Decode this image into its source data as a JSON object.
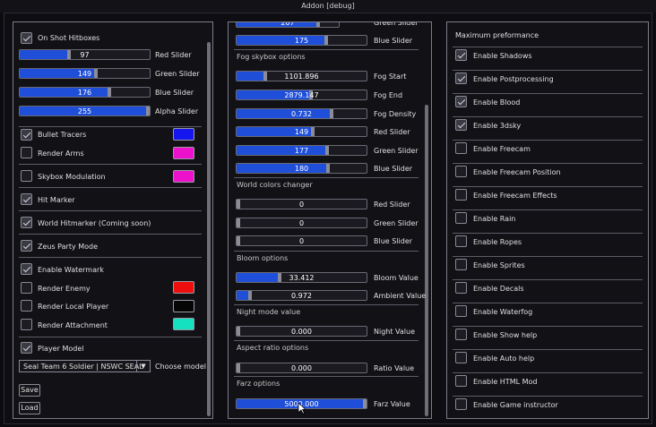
{
  "window": {
    "title": "Addon [debug]"
  },
  "left": {
    "on_shot_hitboxes": "On Shot Hitboxes",
    "sliders": [
      {
        "label": "Red Slider",
        "value": "97",
        "fraction": 0.38
      },
      {
        "label": "Green Slider",
        "value": "149",
        "fraction": 0.584
      },
      {
        "label": "Blue Slider",
        "value": "176",
        "fraction": 0.69
      },
      {
        "label": "Alpha Slider",
        "value": "255",
        "fraction": 1.0
      }
    ],
    "bullet_tracers": "Bullet Tracers",
    "render_arms": "Render Arms",
    "skybox_modulation": "Skybox Modulation",
    "hit_marker": "Hit Marker",
    "world_hitmarker": "World Hitmarker (Coming soon)",
    "zeus_party_mode": "Zeus Party Mode",
    "enable_watermark": "Enable Watermark",
    "render_enemy": "Render Enemy",
    "render_local_player": "Render Local Player",
    "render_attachment": "Render Attachment",
    "player_model": "Player Model",
    "model_select": "Seal Team 6 Soldier | NSWC SEAL",
    "choose_model": "Choose model",
    "save": "Save",
    "load": "Load",
    "colors": {
      "bullet_tracers": "#1515ee",
      "render_arms": "#ee11cc",
      "skybox_modulation": "#ee11cc",
      "render_enemy": "#ee0e0e",
      "render_local_player": "#050505",
      "render_attachment": "#15e0c0"
    }
  },
  "middle": {
    "top_partial": {
      "label": "Green Slider",
      "value": "207",
      "fraction": 0.8
    },
    "top_blue": {
      "label": "Blue Slider",
      "value": "175",
      "fraction": 0.69
    },
    "fog_header": "Fog skybox options",
    "fog": [
      {
        "label": "Fog Start",
        "value": "1101.896",
        "fraction": 0.22
      },
      {
        "label": "Fog End",
        "value": "2879.147",
        "fraction": 0.57
      },
      {
        "label": "Fog Density",
        "value": "0.732",
        "fraction": 0.73
      },
      {
        "label": "Red Slider",
        "value": "149",
        "fraction": 0.584
      },
      {
        "label": "Green Slider",
        "value": "177",
        "fraction": 0.694
      },
      {
        "label": "Blue Slider",
        "value": "180",
        "fraction": 0.706
      }
    ],
    "world_header": "World colors changer",
    "world": [
      {
        "label": "Red Slider",
        "value": "0",
        "fraction": 0
      },
      {
        "label": "Green Slider",
        "value": "0",
        "fraction": 0
      },
      {
        "label": "Blue Slider",
        "value": "0",
        "fraction": 0
      }
    ],
    "bloom_header": "Bloom options",
    "bloom": [
      {
        "label": "Bloom Value",
        "value": "33.412",
        "fraction": 0.33
      },
      {
        "label": "Ambient Value",
        "value": "0.972",
        "fraction": 0.1
      }
    ],
    "night_header": "Night mode value",
    "night": {
      "label": "Night Value",
      "value": "0.000",
      "fraction": 0
    },
    "aspect_header": "Aspect ratio options",
    "aspect": {
      "label": "Ratio Value",
      "value": "0.000",
      "fraction": 0
    },
    "farz_header": "Farz options",
    "farz": {
      "label": "Farz Value",
      "value": "5000.000",
      "fraction": 1.0
    }
  },
  "right": {
    "header": "Maximum preformance",
    "items": [
      {
        "label": "Enable Shadows",
        "checked": true
      },
      {
        "label": "Enable Postprocessing",
        "checked": true
      },
      {
        "label": "Enable Blood",
        "checked": true
      },
      {
        "label": "Enable 3dsky",
        "checked": true
      },
      {
        "label": "Enable Freecam",
        "checked": false
      },
      {
        "label": "Enable Freecam Position",
        "checked": false
      },
      {
        "label": "Enable Freecam Effects",
        "checked": false
      },
      {
        "label": "Enable Rain",
        "checked": false
      },
      {
        "label": "Enable Ropes",
        "checked": false
      },
      {
        "label": "Enable Sprites",
        "checked": false
      },
      {
        "label": "Enable Decals",
        "checked": false
      },
      {
        "label": "Enable Waterfog",
        "checked": false
      },
      {
        "label": "Enable Show help",
        "checked": false
      },
      {
        "label": "Enable Auto help",
        "checked": false
      },
      {
        "label": "Enable HTML Mod",
        "checked": false
      },
      {
        "label": "Enable Game instructor",
        "checked": false
      }
    ]
  },
  "theme": {
    "slider_fill": "#1f4fd9",
    "panel_border": "#7c7c88"
  }
}
